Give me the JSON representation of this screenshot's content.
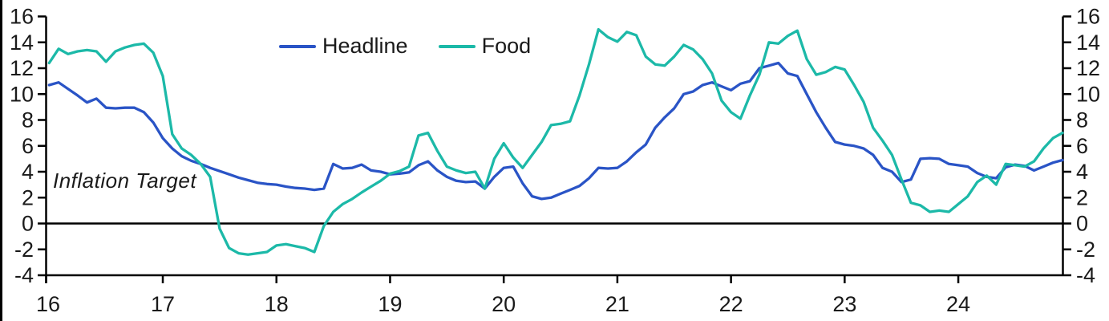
{
  "chart_data": {
    "type": "line",
    "title": "",
    "x_start": "2016-01",
    "x_freq": "monthly",
    "x_tick_labels": [
      "16",
      "17",
      "18",
      "19",
      "20",
      "21",
      "22",
      "23",
      "24"
    ],
    "y_ticks": [
      16,
      14,
      12,
      10,
      8,
      6,
      4,
      2,
      0,
      -2,
      -4
    ],
    "ylim": [
      -4,
      16
    ],
    "xlabel": "",
    "ylabel": "",
    "grid": false,
    "zero_line": true,
    "legend_position": "top-center",
    "axis_color": "#000000",
    "text_color": "#1a1a1a",
    "annotation": {
      "text": "Inflation Target",
      "x": "2016-02",
      "y": 3.2
    },
    "series": [
      {
        "name": "Headline",
        "color": "#2A54C6",
        "values": [
          10.7,
          10.9,
          10.4,
          9.9,
          9.35,
          9.65,
          8.95,
          8.9,
          8.95,
          8.95,
          8.6,
          7.8,
          6.6,
          5.8,
          5.2,
          4.85,
          4.6,
          4.3,
          4.05,
          3.8,
          3.55,
          3.35,
          3.15,
          3.05,
          3.0,
          2.85,
          2.75,
          2.7,
          2.6,
          2.7,
          4.6,
          4.25,
          4.3,
          4.55,
          4.1,
          4.0,
          3.8,
          3.85,
          3.95,
          4.5,
          4.8,
          4.1,
          3.6,
          3.3,
          3.2,
          3.25,
          2.7,
          3.6,
          4.3,
          4.4,
          3.1,
          2.1,
          1.9,
          2.0,
          2.3,
          2.6,
          2.9,
          3.5,
          4.3,
          4.25,
          4.3,
          4.8,
          5.5,
          6.1,
          7.4,
          8.2,
          8.9,
          10.0,
          10.2,
          10.7,
          10.9,
          10.6,
          10.3,
          10.8,
          11.0,
          12.0,
          12.2,
          12.4,
          11.6,
          11.4,
          10.0,
          8.6,
          7.4,
          6.3,
          6.1,
          6.0,
          5.8,
          5.3,
          4.3,
          4.0,
          3.2,
          3.4,
          5.0,
          5.05,
          5.0,
          4.6,
          4.5,
          4.4,
          3.9,
          3.6,
          3.5,
          4.35,
          4.55,
          4.45,
          4.1,
          4.4,
          4.7,
          4.9
        ]
      },
      {
        "name": "Food",
        "color": "#1CB9A8",
        "values": [
          12.4,
          13.5,
          13.1,
          13.3,
          13.4,
          13.3,
          12.5,
          13.3,
          13.6,
          13.8,
          13.9,
          13.2,
          11.4,
          6.9,
          5.8,
          5.3,
          4.6,
          3.6,
          -0.4,
          -1.9,
          -2.3,
          -2.4,
          -2.3,
          -2.2,
          -1.7,
          -1.6,
          -1.75,
          -1.9,
          -2.2,
          -0.2,
          0.9,
          1.5,
          1.9,
          2.4,
          2.85,
          3.3,
          3.85,
          4.05,
          4.4,
          6.8,
          7.0,
          5.6,
          4.4,
          4.1,
          3.9,
          4.0,
          2.7,
          5.0,
          6.2,
          5.1,
          4.3,
          5.3,
          6.3,
          7.6,
          7.7,
          7.9,
          9.9,
          12.3,
          15.0,
          14.4,
          14.05,
          14.8,
          14.55,
          12.9,
          12.3,
          12.2,
          12.9,
          13.8,
          13.45,
          12.7,
          11.6,
          9.5,
          8.6,
          8.1,
          9.9,
          11.5,
          14.0,
          13.9,
          14.5,
          14.9,
          12.7,
          11.5,
          11.7,
          12.1,
          11.9,
          10.7,
          9.4,
          7.4,
          6.4,
          5.3,
          3.4,
          1.6,
          1.4,
          0.9,
          1.0,
          0.9,
          1.5,
          2.1,
          3.2,
          3.7,
          3.0,
          4.6,
          4.5,
          4.4,
          4.8,
          5.8,
          6.6,
          7.0
        ]
      }
    ]
  }
}
